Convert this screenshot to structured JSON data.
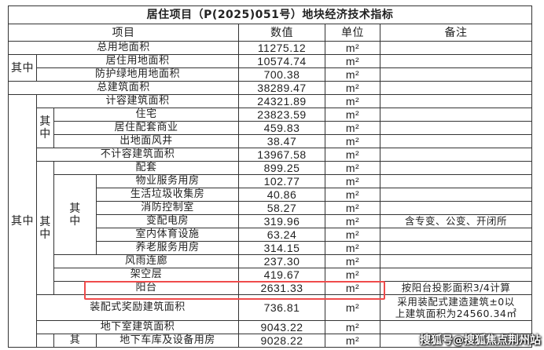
{
  "title": "居住项目（P(2025)051号）地块经济技术指标",
  "header": {
    "item": "项目",
    "value": "数值",
    "unit": "单位",
    "note": "备注"
  },
  "label_of_which": "其中",
  "label_of_which_partial": "其",
  "unit": "m²",
  "rows": {
    "total_land": {
      "label": "总用地面积",
      "value": "11275.12"
    },
    "residential_land": {
      "label": "居住用地面积",
      "value": "10574.74"
    },
    "green_land": {
      "label": "防护绿地用地面积",
      "value": "700.38"
    },
    "total_building": {
      "label": "总建筑面积",
      "value": "38289.47"
    },
    "far_area": {
      "label": "计容建筑面积",
      "value": "24321.89"
    },
    "housing": {
      "label": "住宅",
      "value": "23823.59"
    },
    "commercial": {
      "label": "居住配套商业",
      "value": "459.83"
    },
    "shaft": {
      "label": "出地面风井",
      "value": "38.47"
    },
    "non_far_area": {
      "label": "不计容建筑面积",
      "value": "13967.58"
    },
    "facilities": {
      "label": "配套",
      "value": "899.25"
    },
    "property": {
      "label": "物业服务用房",
      "value": "102.77"
    },
    "garbage": {
      "label": "生活垃圾收集房",
      "value": "40.86"
    },
    "fire": {
      "label": "消防控制室",
      "value": "58.27"
    },
    "substation": {
      "label": "变配电房",
      "value": "319.96",
      "note": "含专变、公变、开闭所"
    },
    "sports": {
      "label": "室内体育设施",
      "value": "63.24"
    },
    "elderly": {
      "label": "养老服务用房",
      "value": "314.15"
    },
    "corridor": {
      "label": "风雨连廊",
      "value": "237.30"
    },
    "stilt": {
      "label": "架空层",
      "value": "419.67"
    },
    "balcony": {
      "label": "阳台",
      "value": "2631.33",
      "note": "按阳台投影面积3/4计算"
    },
    "prefab": {
      "label": "装配式奖励建筑面积",
      "value": "736.81",
      "note_line1": "采用装配式建造建筑±0以",
      "note_line2": "上建筑面积为24560.34㎡"
    },
    "basement": {
      "label": "地下室建筑面积",
      "value": "9043.22"
    },
    "garage": {
      "label": "地下车库及设备用房",
      "value": "9028.22"
    }
  },
  "highlight_color": "#ef4b4b",
  "watermark": "搜狐号@搜狐焦点荆州站"
}
